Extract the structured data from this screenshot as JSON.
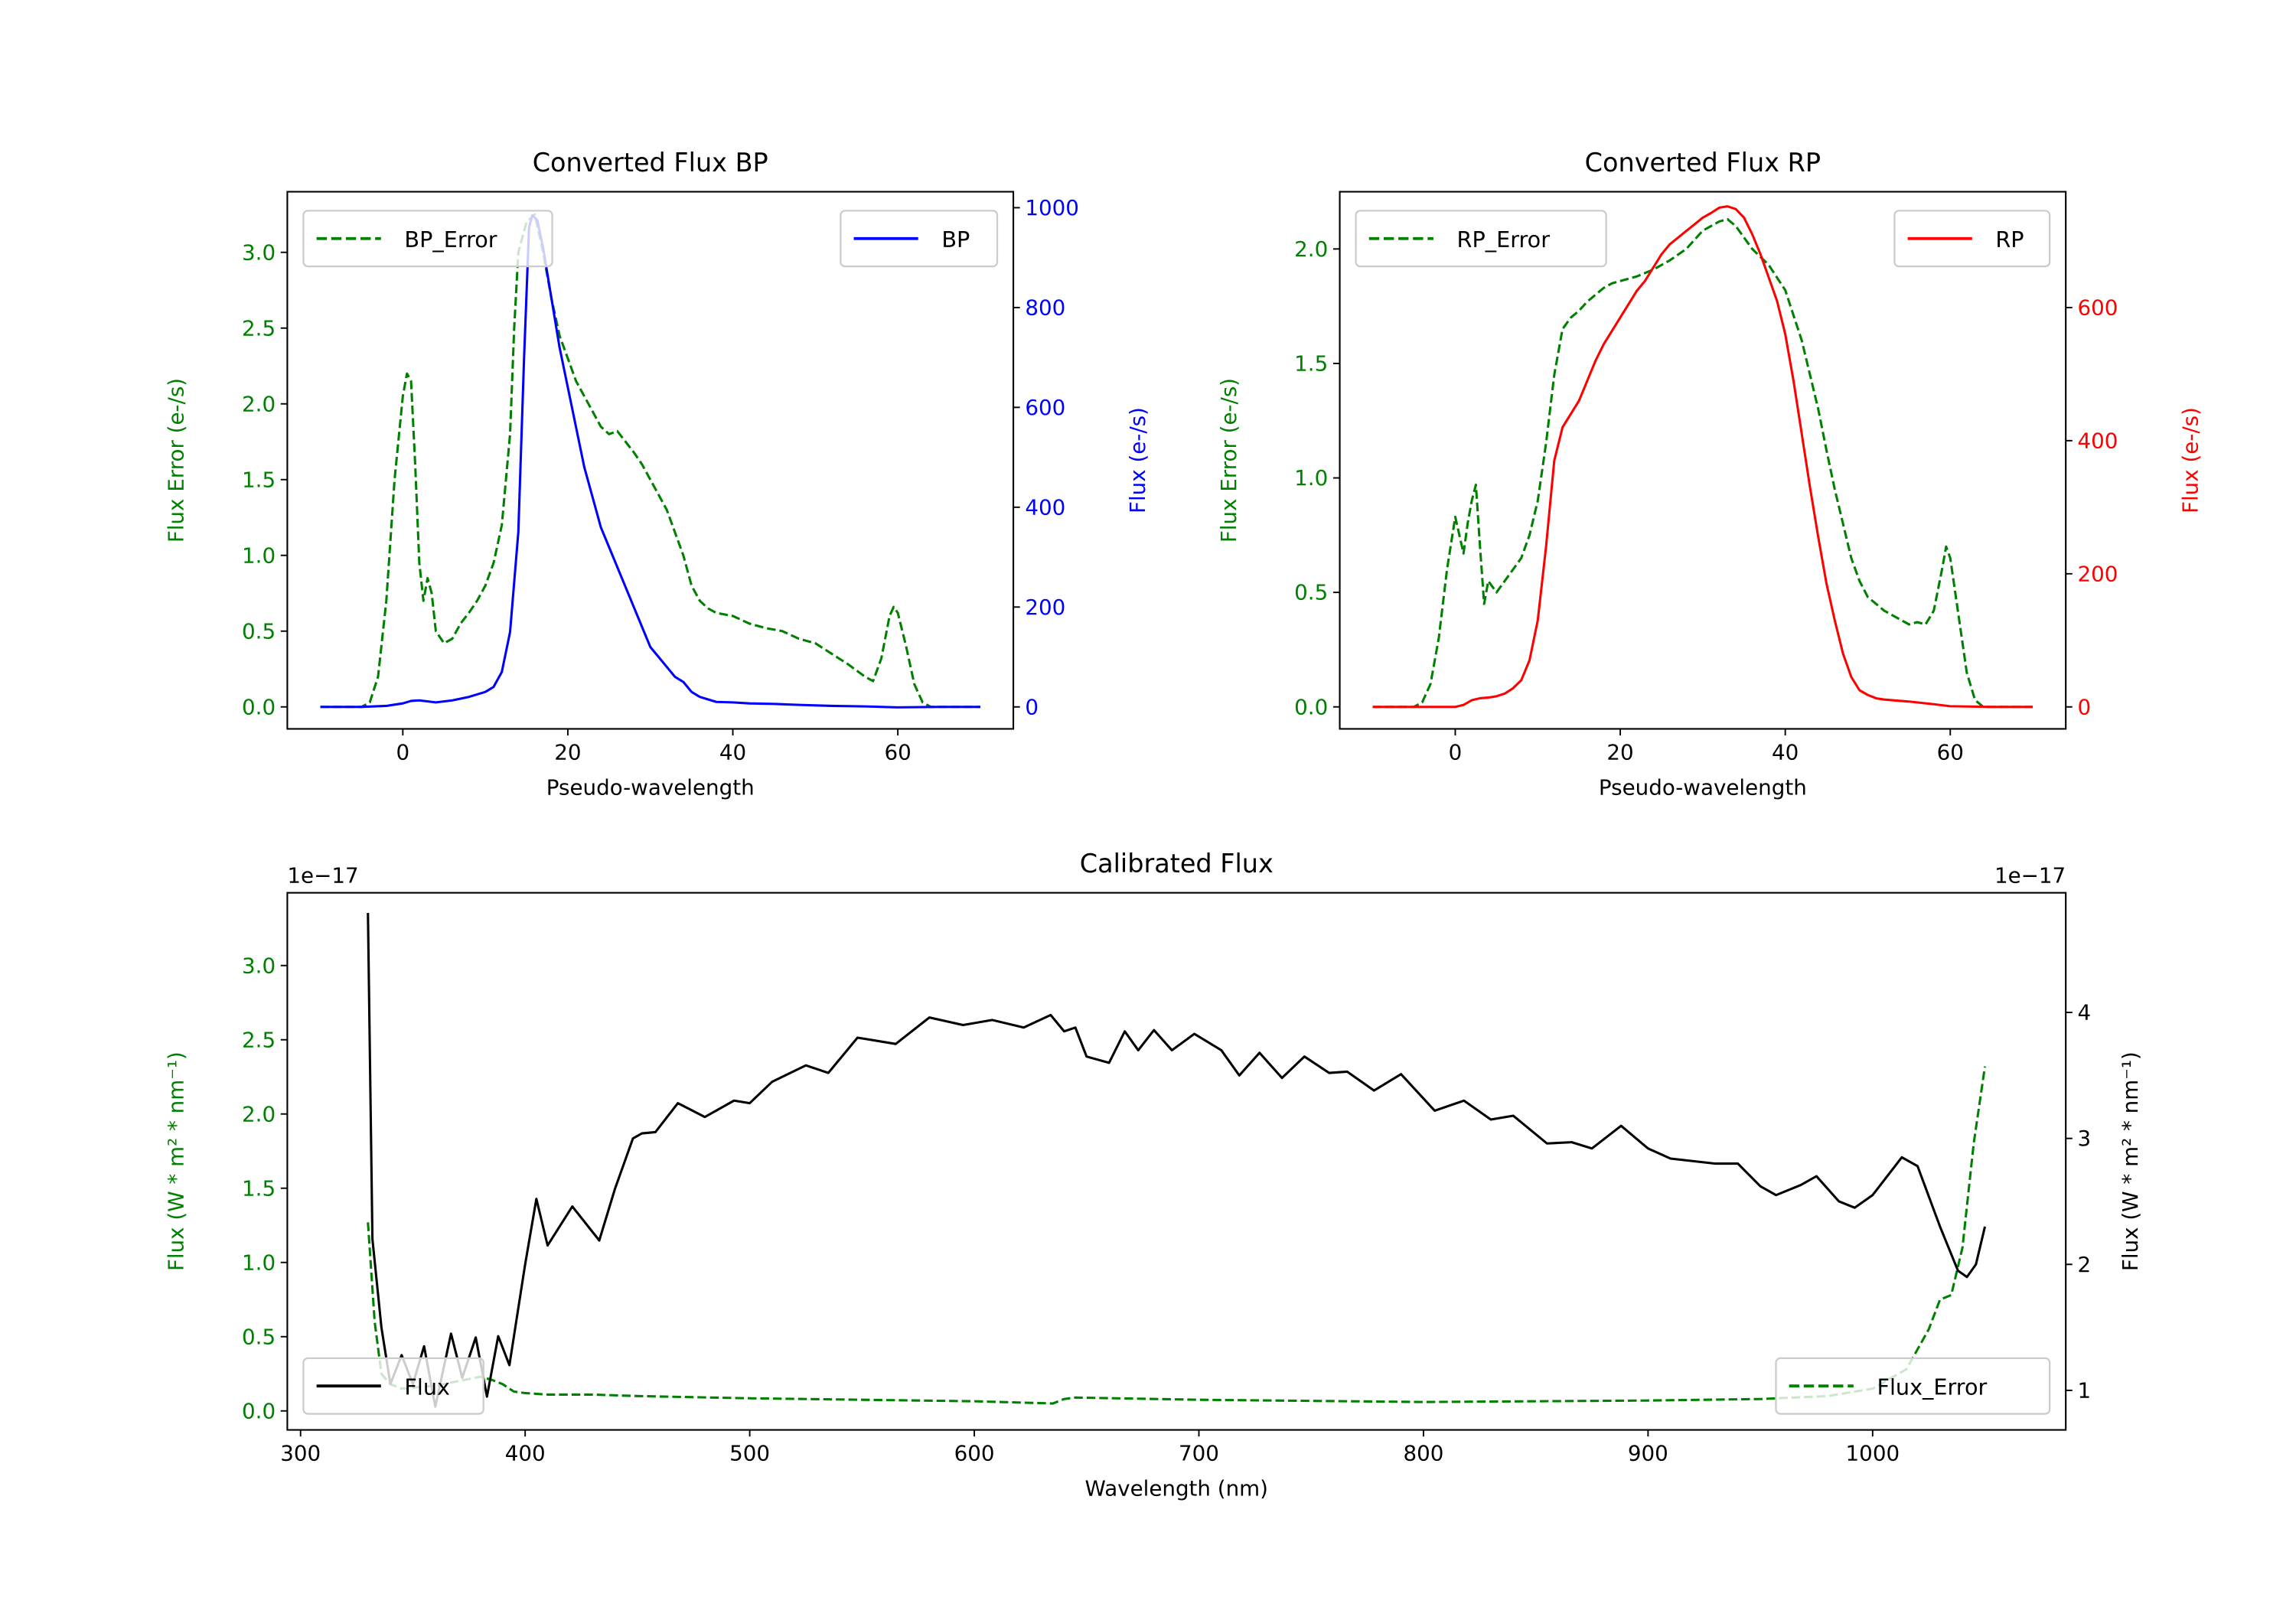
{
  "chart_data": {
    "type": "line",
    "colors": {
      "error": "#008000",
      "bp": "#0000ff",
      "rp": "#ff0000",
      "flux": "#000000"
    },
    "panels": [
      {
        "title": "Converted Flux BP",
        "xlabel": "Pseudo-wavelength",
        "ylabel_left": "Flux Error (e-/s)",
        "ylabel_right": "Flux (e-/s)",
        "ylabel_left_color": "#008000",
        "ylabel_right_color": "#0000ff",
        "xlim": [
          -14,
          74
        ],
        "ylim_left": [
          -0.145,
          3.4
        ],
        "ylim_right": [
          -44,
          1032
        ],
        "xticks": [
          0,
          20,
          40,
          60
        ],
        "xtick_labels": [
          "0",
          "20",
          "40",
          "60"
        ],
        "yticks_left": [
          0,
          0.5,
          1,
          1.5,
          2,
          2.5,
          3
        ],
        "ytick_labels_left": [
          "0.0",
          "0.5",
          "1.0",
          "1.5",
          "2.0",
          "2.5",
          "3.0"
        ],
        "yticks_right": [
          0,
          200,
          400,
          600,
          800,
          1000
        ],
        "ytick_labels_right": [
          "0",
          "200",
          "400",
          "600",
          "800",
          "1000"
        ],
        "series": [
          {
            "name": "BP",
            "axis": "right",
            "color": "#0000ff",
            "style": "solid",
            "x": [
              -10,
              -5,
              -2,
              0,
              1,
              2,
              4,
              6,
              8,
              10,
              11,
              12,
              13,
              14,
              14.7,
              15.3,
              15.7,
              16.3,
              17,
              18,
              19,
              20,
              21,
              22,
              23,
              24,
              25,
              26,
              27,
              28,
              29,
              30,
              31,
              32,
              33,
              34,
              35,
              36,
              37,
              38,
              40,
              42,
              45,
              48,
              52,
              56,
              60,
              65,
              70
            ],
            "y": [
              0,
              0,
              2,
              7,
              12,
              13,
              9,
              13,
              20,
              30,
              40,
              70,
              150,
              350,
              700,
              960,
              985,
              975,
              920,
              820,
              720,
              640,
              560,
              480,
              420,
              360,
              320,
              280,
              240,
              200,
              160,
              120,
              100,
              80,
              60,
              50,
              30,
              20,
              15,
              10,
              9,
              7,
              6,
              4,
              2,
              1,
              -1,
              0,
              0
            ]
          },
          {
            "name": "BP_Error",
            "axis": "left",
            "color": "#008000",
            "style": "dashed",
            "x": [
              -10,
              -5,
              -4,
              -3,
              -2,
              -1,
              0,
              0.5,
              1,
              1.5,
              2,
              2.5,
              3,
              3.5,
              4,
              5,
              6,
              7,
              8,
              9,
              10,
              11,
              12,
              13,
              13.5,
              14,
              15,
              16,
              17,
              18,
              19,
              20,
              21,
              22,
              23,
              24,
              25,
              26,
              27,
              28,
              29,
              30,
              31,
              32,
              33,
              34,
              35,
              36,
              37,
              38,
              40,
              42,
              44,
              46,
              48,
              50,
              52,
              54,
              56,
              57,
              58,
              59,
              59.5,
              60,
              61,
              62,
              63,
              64,
              70
            ],
            "y": [
              0,
              0,
              0.03,
              0.2,
              0.7,
              1.5,
              2.05,
              2.2,
              2.15,
              1.6,
              0.95,
              0.7,
              0.85,
              0.75,
              0.5,
              0.42,
              0.45,
              0.55,
              0.62,
              0.7,
              0.8,
              0.95,
              1.2,
              1.8,
              2.5,
              3.0,
              3.2,
              3.25,
              3.0,
              2.7,
              2.45,
              2.3,
              2.15,
              2.05,
              1.95,
              1.85,
              1.8,
              1.82,
              1.75,
              1.68,
              1.6,
              1.5,
              1.4,
              1.3,
              1.15,
              1.0,
              0.8,
              0.7,
              0.65,
              0.62,
              0.6,
              0.55,
              0.52,
              0.5,
              0.45,
              0.42,
              0.35,
              0.28,
              0.2,
              0.17,
              0.32,
              0.6,
              0.66,
              0.62,
              0.4,
              0.15,
              0.03,
              0,
              0
            ]
          }
        ],
        "legends": [
          {
            "loc": "upper left",
            "label": "BP_Error",
            "series": 1
          },
          {
            "loc": "upper right",
            "label": "BP",
            "series": 0
          }
        ]
      },
      {
        "title": "Converted Flux RP",
        "xlabel": "Pseudo-wavelength",
        "ylabel_left": "Flux Error (e-/s)",
        "ylabel_right": "Flux (e-/s)",
        "ylabel_left_color": "#008000",
        "ylabel_right_color": "#ff0000",
        "xlim": [
          -14,
          74
        ],
        "ylim_left": [
          -0.096,
          2.25
        ],
        "ylim_right": [
          -33,
          774
        ],
        "xticks": [
          0,
          20,
          40,
          60
        ],
        "xtick_labels": [
          "0",
          "20",
          "40",
          "60"
        ],
        "yticks_left": [
          0,
          0.5,
          1,
          1.5,
          2
        ],
        "ytick_labels_left": [
          "0.0",
          "0.5",
          "1.0",
          "1.5",
          "2.0"
        ],
        "yticks_right": [
          0,
          200,
          400,
          600
        ],
        "ytick_labels_right": [
          "0",
          "200",
          "400",
          "600"
        ],
        "series": [
          {
            "name": "RP",
            "axis": "right",
            "color": "#ff0000",
            "style": "solid",
            "x": [
              -10,
              0,
              1,
              2,
              3,
              4,
              5,
              6,
              7,
              8,
              9,
              10,
              11,
              12,
              13,
              14,
              15,
              16,
              17,
              18,
              19,
              20,
              21,
              22,
              23,
              24,
              25,
              26,
              27,
              28,
              29,
              30,
              31,
              32,
              33,
              34,
              35,
              36,
              37,
              38,
              39,
              40,
              41,
              42,
              43,
              44,
              45,
              46,
              47,
              48,
              49,
              50,
              51,
              52,
              55,
              58,
              60,
              65,
              70
            ],
            "y": [
              0,
              0,
              3,
              10,
              13,
              14,
              16,
              20,
              28,
              40,
              70,
              130,
              240,
              370,
              420,
              440,
              460,
              490,
              520,
              545,
              565,
              585,
              605,
              625,
              640,
              660,
              680,
              695,
              705,
              715,
              725,
              735,
              742,
              750,
              752,
              748,
              735,
              710,
              680,
              645,
              610,
              560,
              490,
              410,
              330,
              255,
              185,
              130,
              80,
              45,
              25,
              18,
              13,
              11,
              8,
              4,
              1,
              0,
              0
            ]
          },
          {
            "name": "RP_Error",
            "axis": "left",
            "color": "#008000",
            "style": "dashed",
            "x": [
              -10,
              -5,
              -4,
              -3,
              -2,
              -1,
              0,
              0.5,
              1,
              1.5,
              2,
              2.5,
              3,
              3.5,
              4,
              5,
              6,
              7,
              8,
              9,
              10,
              11,
              12,
              13,
              14,
              15,
              16,
              17,
              18,
              19,
              20,
              22,
              24,
              26,
              28,
              30,
              32,
              33,
              34,
              35,
              36,
              38,
              40,
              42,
              43,
              44,
              45,
              46,
              47,
              48,
              49,
              50,
              52,
              54,
              55,
              56,
              57,
              58,
              59,
              59.5,
              60,
              61,
              62,
              63,
              64,
              70
            ],
            "y": [
              0,
              0,
              0.02,
              0.1,
              0.3,
              0.6,
              0.83,
              0.75,
              0.67,
              0.8,
              0.9,
              0.97,
              0.7,
              0.45,
              0.55,
              0.5,
              0.55,
              0.6,
              0.65,
              0.75,
              0.9,
              1.15,
              1.45,
              1.65,
              1.7,
              1.73,
              1.77,
              1.8,
              1.83,
              1.85,
              1.86,
              1.88,
              1.91,
              1.95,
              2.0,
              2.08,
              2.12,
              2.13,
              2.1,
              2.05,
              2.0,
              1.93,
              1.82,
              1.6,
              1.45,
              1.3,
              1.12,
              0.95,
              0.8,
              0.65,
              0.55,
              0.48,
              0.42,
              0.38,
              0.36,
              0.37,
              0.36,
              0.42,
              0.6,
              0.7,
              0.65,
              0.4,
              0.15,
              0.03,
              0,
              0
            ]
          }
        ],
        "legends": [
          {
            "loc": "upper left",
            "label": "RP_Error",
            "series": 1
          },
          {
            "loc": "upper right",
            "label": "RP",
            "series": 0
          }
        ]
      },
      {
        "title": "Calibrated Flux",
        "xlabel": "Wavelength (nm)",
        "ylabel_left": "Flux (W * m² * nm⁻¹)",
        "ylabel_right": "Flux (W * m² * nm⁻¹)",
        "ylabel_left_color": "#008000",
        "ylabel_right_color": "#000000",
        "offset_left": "1e−17",
        "offset_right": "1e−17",
        "xlim": [
          294.1,
          1086
        ],
        "ylim_left": [
          -0.128,
          3.49
        ],
        "ylim_right": [
          0.686,
          4.95
        ],
        "xticks": [
          300,
          400,
          500,
          600,
          700,
          800,
          900,
          1000
        ],
        "xtick_labels": [
          "300",
          "400",
          "500",
          "600",
          "700",
          "800",
          "900",
          "1000"
        ],
        "yticks_left": [
          0,
          0.5,
          1,
          1.5,
          2,
          2.5,
          3
        ],
        "ytick_labels_left": [
          "0.0",
          "0.5",
          "1.0",
          "1.5",
          "2.0",
          "2.5",
          "3.0"
        ],
        "yticks_right": [
          1,
          2,
          3,
          4
        ],
        "ytick_labels_right": [
          "1",
          "2",
          "3",
          "4"
        ],
        "series": [
          {
            "name": "Flux",
            "axis": "right",
            "color": "#000000",
            "style": "solid",
            "x": [
              330,
              332,
              336,
              340,
              345,
              350,
              355,
              360,
              367,
              372,
              378,
              383,
              388,
              393,
              400,
              405,
              410,
              421,
              433,
              440,
              448,
              452,
              458,
              468,
              480,
              493,
              500,
              510,
              525,
              535,
              548,
              565,
              580,
              595,
              608,
              622,
              634,
              640,
              645,
              650,
              660,
              667,
              673,
              680,
              688,
              698,
              710,
              718,
              727,
              737,
              747,
              758,
              766,
              778,
              790,
              805,
              818,
              830,
              840,
              855,
              866,
              875,
              888,
              900,
              910,
              930,
              940,
              950,
              957,
              968,
              975,
              985,
              992,
              1000,
              1013,
              1020,
              1030,
              1038,
              1042,
              1046,
              1050
            ],
            "y": [
              4.79,
              2.2,
              1.5,
              1.05,
              1.28,
              1.05,
              1.35,
              0.87,
              1.45,
              1.1,
              1.42,
              0.95,
              1.43,
              1.2,
              2.0,
              2.52,
              2.15,
              2.46,
              2.19,
              2.6,
              3.0,
              3.04,
              3.05,
              3.28,
              3.17,
              3.3,
              3.28,
              3.45,
              3.58,
              3.52,
              3.8,
              3.75,
              3.96,
              3.9,
              3.94,
              3.88,
              3.98,
              3.85,
              3.88,
              3.65,
              3.6,
              3.85,
              3.7,
              3.86,
              3.7,
              3.83,
              3.7,
              3.5,
              3.68,
              3.48,
              3.65,
              3.52,
              3.53,
              3.38,
              3.51,
              3.22,
              3.3,
              3.15,
              3.18,
              2.96,
              2.97,
              2.92,
              3.1,
              2.92,
              2.84,
              2.8,
              2.8,
              2.62,
              2.55,
              2.63,
              2.7,
              2.5,
              2.45,
              2.55,
              2.85,
              2.78,
              2.3,
              1.95,
              1.9,
              2.0,
              2.3
            ]
          },
          {
            "name": "Flux_Error",
            "axis": "left",
            "color": "#008000",
            "style": "dashed",
            "x": [
              330,
              333,
              336,
              340,
              345,
              360,
              370,
              380,
              385,
              390,
              395,
              400,
              410,
              430,
              450,
              500,
              550,
              600,
              635,
              640,
              645,
              700,
              800,
              900,
              950,
              980,
              1000,
              1015,
              1025,
              1030,
              1035,
              1040,
              1045,
              1050
            ],
            "y": [
              1.27,
              0.6,
              0.25,
              0.18,
              0.15,
              0.17,
              0.2,
              0.23,
              0.21,
              0.18,
              0.13,
              0.12,
              0.11,
              0.11,
              0.1,
              0.085,
              0.075,
              0.065,
              0.05,
              0.08,
              0.09,
              0.075,
              0.06,
              0.07,
              0.08,
              0.1,
              0.15,
              0.28,
              0.55,
              0.75,
              0.78,
              1.1,
              1.8,
              2.32
            ]
          }
        ],
        "legends": [
          {
            "loc": "lower left",
            "label": "Flux",
            "series": 0
          },
          {
            "loc": "lower right",
            "label": "Flux_Error",
            "series": 1
          }
        ]
      }
    ]
  }
}
